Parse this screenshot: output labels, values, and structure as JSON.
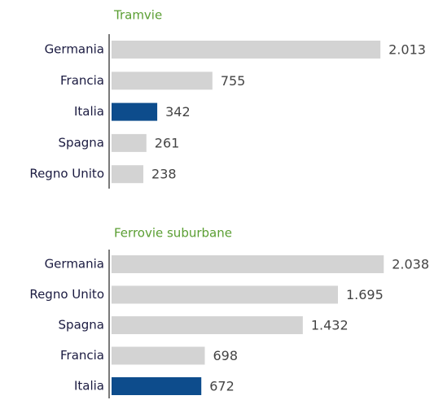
{
  "chart_data": [
    {
      "type": "bar",
      "orientation": "horizontal",
      "title": "Tramvie",
      "categories": [
        "Germania",
        "Francia",
        "Italia",
        "Spagna",
        "Regno Unito"
      ],
      "values": [
        2013,
        755,
        342,
        261,
        238
      ],
      "value_labels": [
        "2.013",
        "755",
        "342",
        "261",
        "238"
      ],
      "colors": [
        "#d3d3d3",
        "#d3d3d3",
        "#0d4c8c",
        "#d3d3d3",
        "#d3d3d3"
      ]
    },
    {
      "type": "bar",
      "orientation": "horizontal",
      "title": "Ferrovie suburbane",
      "categories": [
        "Germania",
        "Regno Unito",
        "Spagna",
        "Francia",
        "Italia"
      ],
      "values": [
        2038,
        1695,
        1432,
        698,
        672
      ],
      "value_labels": [
        "2.038",
        "1.695",
        "1.432",
        "698",
        "672"
      ],
      "colors": [
        "#d3d3d3",
        "#d3d3d3",
        "#d3d3d3",
        "#d3d3d3",
        "#0d4c8c"
      ]
    }
  ]
}
